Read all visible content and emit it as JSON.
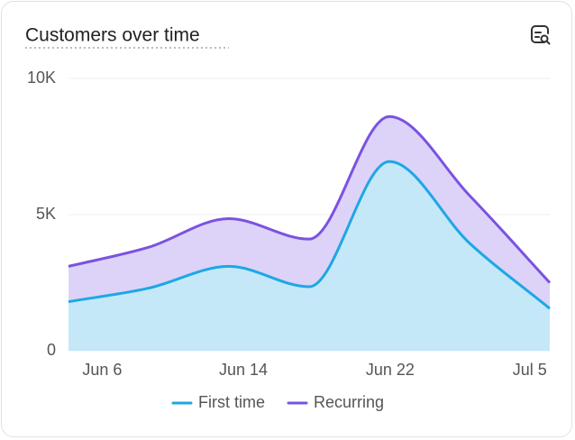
{
  "chart_data": {
    "type": "stacked-area",
    "title": "Customers over time",
    "x": [
      0,
      1,
      2,
      3,
      4,
      5,
      6
    ],
    "xlim": [
      0,
      6
    ],
    "xticks": [
      {
        "value": 0.42,
        "label": "Jun 6"
      },
      {
        "value": 2.18,
        "label": "Jun 14"
      },
      {
        "value": 4.01,
        "label": "Jun 22"
      },
      {
        "value": 5.75,
        "label": "Jul 5"
      }
    ],
    "series": [
      {
        "name": "First time",
        "color": "#1ea7e4",
        "fill": "#c4e8f8",
        "values": [
          1800,
          2300,
          3100,
          2350,
          6950,
          3950,
          1550
        ]
      },
      {
        "name": "Recurring",
        "color": "#7b52e0",
        "fill": "#ddd3f8",
        "values": [
          1300,
          1500,
          1750,
          1750,
          1650,
          1750,
          950
        ]
      }
    ],
    "ylim": [
      0,
      10000
    ],
    "yticks": [
      0,
      {
        "value": 5000,
        "label": "5K"
      },
      {
        "value": 10000,
        "label": "10K"
      }
    ],
    "grid": true
  }
}
